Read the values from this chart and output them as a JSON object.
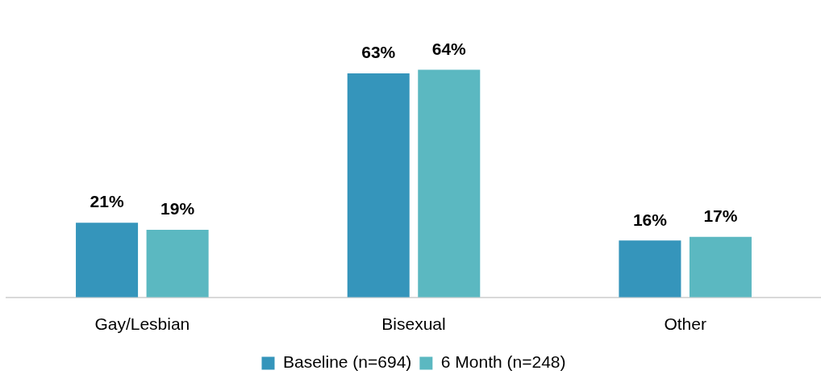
{
  "chart_data": {
    "type": "bar",
    "categories": [
      "Gay/Lesbian",
      "Bisexual",
      "Other"
    ],
    "series": [
      {
        "name": "Baseline (n=694)",
        "color": "#3595bb",
        "values": [
          21,
          63,
          16
        ],
        "value_labels": [
          "21%",
          "63%",
          "16%"
        ]
      },
      {
        "name": "6 Month (n=248)",
        "color": "#5bb8c1",
        "values": [
          19,
          64,
          17
        ],
        "value_labels": [
          "19%",
          "64%",
          "17%"
        ]
      }
    ],
    "legend": "bottom",
    "grid": false,
    "tick_labels": "x"
  }
}
